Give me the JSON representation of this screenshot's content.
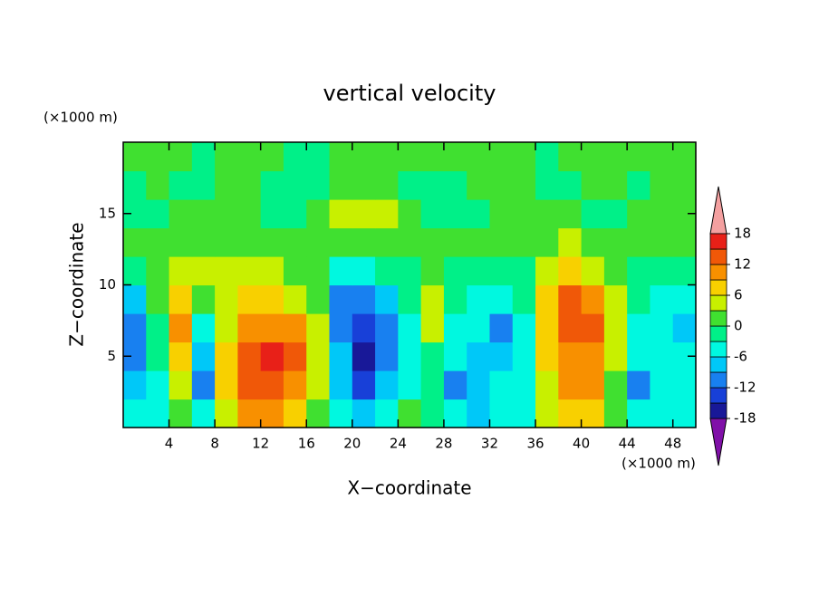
{
  "chart_data": {
    "type": "contour",
    "title": "vertical velocity",
    "x_label": "X−coordinate",
    "y_label": "Z−coordinate",
    "x_unit": "(×1000 m)",
    "y_unit": "(×1000 m)",
    "xlim": [
      0,
      50
    ],
    "ylim": [
      0,
      20
    ],
    "xticks": [
      4,
      8,
      12,
      16,
      20,
      24,
      28,
      32,
      36,
      40,
      44,
      48
    ],
    "yticks": [
      5,
      10,
      15
    ],
    "x": [
      1,
      3,
      5,
      7,
      9,
      11,
      13,
      15,
      17,
      19,
      21,
      23,
      25,
      27,
      29,
      31,
      33,
      35,
      37,
      39,
      41,
      43,
      45,
      47,
      49
    ],
    "y": [
      1,
      3,
      5,
      7,
      9,
      11,
      13,
      15,
      17,
      19
    ],
    "z": [
      [
        -5,
        -4,
        2,
        -5,
        5,
        9,
        10,
        7,
        2,
        -6,
        -8,
        -5,
        0,
        -2,
        -4,
        -7,
        -5,
        -5,
        4,
        7,
        6,
        0,
        -6,
        -5,
        -5
      ],
      [
        -9,
        -4,
        3,
        -11,
        6,
        12,
        14,
        11,
        4,
        -8,
        -13,
        -9,
        -5,
        -2,
        -11,
        -7,
        -6,
        -5,
        5,
        9,
        9,
        2,
        -10,
        -5,
        -6
      ],
      [
        -10,
        -2,
        7,
        -7,
        6,
        13,
        15,
        12,
        4,
        -9,
        -16,
        -11,
        -5,
        -2,
        -6,
        -7,
        -9,
        -4,
        6,
        11,
        10,
        3,
        -6,
        -5,
        -6
      ],
      [
        -11,
        -3,
        9,
        -4,
        5,
        10,
        11,
        9,
        3,
        -10,
        -15,
        -11,
        -4,
        3,
        -5,
        -6,
        -11,
        -4,
        7,
        13,
        13,
        4,
        -4,
        -5,
        -8
      ],
      [
        -9,
        0,
        7,
        2,
        4,
        6,
        6,
        5,
        1,
        -12,
        -11,
        -7,
        -3,
        4,
        -3,
        -4,
        -6,
        -3,
        7,
        12,
        9,
        3,
        -3,
        -4,
        -5
      ],
      [
        -3,
        1,
        4,
        3,
        3,
        4,
        3,
        2,
        0,
        -6,
        -5,
        -3,
        -2,
        2,
        -2,
        -3,
        -3,
        -2,
        5,
        7,
        4,
        1,
        -2,
        -3,
        -3
      ],
      [
        0,
        1,
        2,
        2,
        2,
        2,
        2,
        1,
        1,
        0,
        0,
        0,
        1,
        1,
        0,
        1,
        1,
        1,
        2,
        3,
        2,
        1,
        1,
        1,
        1
      ],
      [
        -1,
        -1,
        1,
        1,
        1,
        0,
        -1,
        -2,
        1,
        3,
        4,
        3,
        0,
        -2,
        -2,
        -1,
        0,
        1,
        1,
        0,
        -1,
        -1,
        0,
        1,
        1
      ],
      [
        -1,
        1,
        -1,
        -1,
        1,
        0,
        -1,
        -1,
        -1,
        2,
        1,
        1,
        -1,
        -2,
        -1,
        0,
        1,
        1,
        -1,
        -1,
        0,
        0,
        -1,
        1,
        0
      ],
      [
        0,
        1,
        1,
        -1,
        1,
        0,
        0,
        -1,
        -1,
        0,
        1,
        0,
        1,
        0,
        1,
        1,
        1,
        1,
        -1,
        1,
        1,
        0,
        0,
        1,
        0
      ]
    ],
    "levels": [
      -18,
      -15,
      -12,
      -9,
      -6,
      -3,
      0,
      3,
      6,
      9,
      12,
      15,
      18
    ],
    "colors": [
      "#8010a8",
      "#181898",
      "#1840d8",
      "#1880f0",
      "#00c8f8",
      "#00f8e0",
      "#00f088",
      "#40e030",
      "#c8f000",
      "#f8d000",
      "#f89000",
      "#f05808",
      "#e82018",
      "#f4a0a0"
    ],
    "colorbar_ticks": [
      -18,
      -12,
      -6,
      0,
      6,
      12,
      18
    ]
  }
}
